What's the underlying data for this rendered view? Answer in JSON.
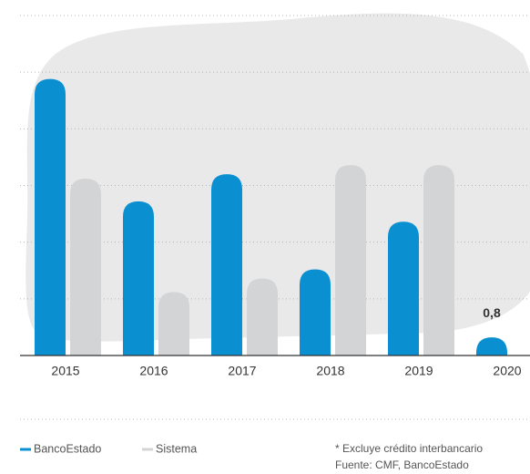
{
  "chart_data": {
    "type": "bar",
    "categories": [
      "2015",
      "2016",
      "2017",
      "2018",
      "2019",
      "2020"
    ],
    "series": [
      {
        "name": "BancoEstado",
        "color": "#0a8fd1",
        "values": [
          12.2,
          6.8,
          8.0,
          3.8,
          5.9,
          0.8
        ],
        "value_labels": [
          null,
          null,
          null,
          null,
          null,
          "0,8"
        ]
      },
      {
        "name": "Sistema",
        "color": "#d3d4d6",
        "values": [
          7.8,
          2.8,
          3.4,
          8.4,
          8.4,
          null
        ]
      }
    ],
    "ylim": [
      0,
      15
    ],
    "yticks": [
      2.5,
      5,
      7.5,
      10,
      12.5,
      15
    ],
    "grid": true,
    "notes": [
      "* Excluye crédito interbancario",
      "Fuente: CMF, BancoEstado"
    ]
  }
}
